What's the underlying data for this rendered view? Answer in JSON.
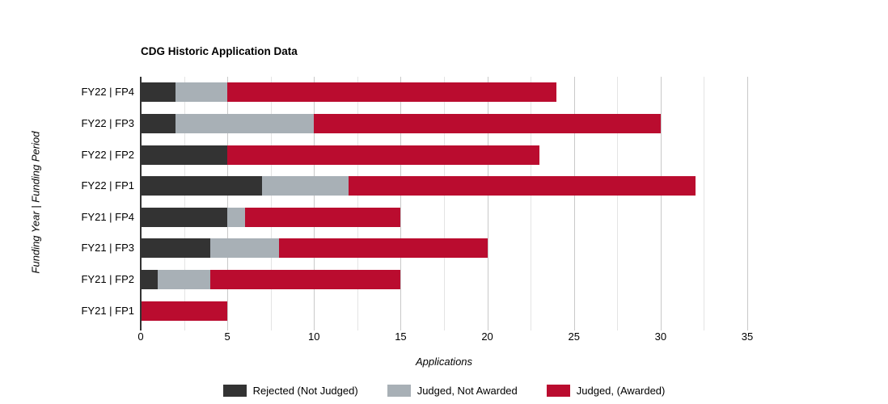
{
  "chart_data": {
    "type": "bar",
    "orientation": "horizontal",
    "stacked": true,
    "title": "CDG Historic Application Data",
    "xlabel": "Applications",
    "ylabel": "Funding Year | Funding Period",
    "xlim": [
      0,
      35
    ],
    "x_ticks": [
      0,
      5,
      10,
      15,
      20,
      25,
      30,
      35
    ],
    "minor_grid_step": 2.5,
    "grid_on": true,
    "legend_position": "bottom",
    "categories": [
      "FY22 | FP4",
      "FY22 | FP3",
      "FY22 | FP2",
      "FY22 | FP1",
      "FY21 | FP4",
      "FY21 | FP3",
      "FY21 | FP2",
      "FY21 | FP1"
    ],
    "series": [
      {
        "key": "rejected",
        "name": "Rejected (Not Judged)",
        "color": "#333333",
        "values": [
          2,
          2,
          5,
          7,
          5,
          4,
          1,
          0
        ]
      },
      {
        "key": "judged-not-awarded",
        "name": "Judged, Not Awarded",
        "color": "#a8b0b6",
        "values": [
          3,
          8,
          0,
          5,
          1,
          4,
          3,
          0
        ]
      },
      {
        "key": "judged-awarded",
        "name": "Judged, (Awarded)",
        "color": "#ba0c2f",
        "values": [
          19,
          20,
          18,
          20,
          9,
          12,
          11,
          5
        ]
      }
    ],
    "totals": [
      24,
      30,
      23,
      32,
      15,
      20,
      15,
      5
    ]
  },
  "style_colors": {
    "major_gridline": "#c9c9c9",
    "minor_gridline": "#e4e4e4",
    "axis_line": "#333333",
    "text": "#000000"
  }
}
